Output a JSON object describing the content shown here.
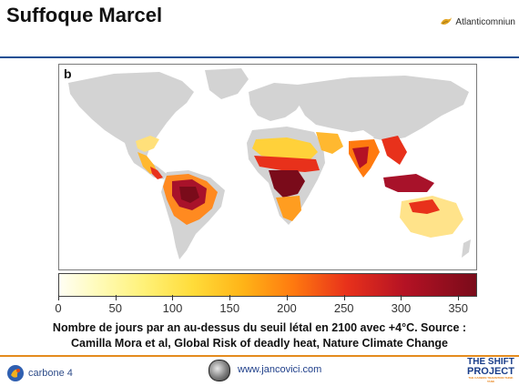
{
  "header": {
    "title": "Suffoque Marcel",
    "brand": "Atlanticomniun"
  },
  "map": {
    "panel_label": "b",
    "legend": {
      "ticks": [
        "0",
        "50",
        "100",
        "150",
        "200",
        "250",
        "300",
        "350"
      ],
      "range": [
        0,
        365
      ],
      "colors": [
        "#fffef4",
        "#fffbbb",
        "#fff27a",
        "#ffdc3a",
        "#ffb417",
        "#ff7a0f",
        "#e8311b",
        "#b41224",
        "#7a0b1a"
      ]
    },
    "caption_line1": "Nombre de jours par an au-dessus du seuil létal en 2100 avec +4°C. Source :",
    "caption_line2": "Camilla Mora et al, Global Risk of deadly heat, Nature Climate Change"
  },
  "footer": {
    "left_logo": "carbone 4",
    "url": "www.jancovici.com",
    "right_logo_line1": "THE SHIFT",
    "right_logo_line2": "PROJECT",
    "right_logo_tagline": "THE CARBON TRANSITION THINK TANK"
  },
  "colors": {
    "accent_blue": "#1a4f93",
    "footer_orange": "#e48b1e",
    "land_grey": "#d3d3d3"
  }
}
